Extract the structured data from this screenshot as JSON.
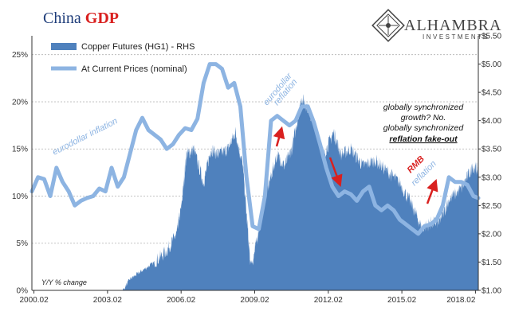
{
  "title": {
    "part1": "China",
    "part2": "GDP"
  },
  "logo": {
    "name": "ALHAMBRA",
    "sub": "INVESTMENTS"
  },
  "chart_data": {
    "type": "line",
    "x_tick_labels": [
      "2000.02",
      "2003.02",
      "2006.02",
      "2009.02",
      "2012.02",
      "2015.02",
      "2018.02"
    ],
    "y_left": {
      "range": [
        0,
        27
      ],
      "ticks": [
        "0%",
        "5%",
        "10%",
        "15%",
        "20%",
        "25%"
      ],
      "tick_values": [
        0,
        5,
        10,
        15,
        20,
        25
      ]
    },
    "y_right": {
      "range": [
        1.0,
        5.5
      ],
      "ticks": [
        "$1.00",
        "$1.50",
        "$2.00",
        "$2.50",
        "$3.00",
        "$3.50",
        "$4.00",
        "$4.50",
        "$5.00",
        "$5.50"
      ],
      "tick_values": [
        1.0,
        1.5,
        2.0,
        2.5,
        3.0,
        3.5,
        4.0,
        4.5,
        5.0,
        5.5
      ]
    },
    "grid": "horizontal dashed",
    "legend_placement": "top-left",
    "series": [
      {
        "name": "Copper Futures (HG1) - RHS",
        "type": "area",
        "axis": "right",
        "color": "#4f81bd",
        "x": [
          2000.0,
          2001.0,
          2002.0,
          2003.0,
          2003.5,
          2004.0,
          2004.5,
          2005.0,
          2005.5,
          2005.9,
          2006.1,
          2006.3,
          2006.6,
          2007.0,
          2007.3,
          2007.6,
          2008.0,
          2008.3,
          2008.6,
          2008.9,
          2009.0,
          2009.3,
          2009.6,
          2010.0,
          2010.3,
          2010.6,
          2011.0,
          2011.3,
          2011.6,
          2011.9,
          2012.3,
          2012.6,
          2013.0,
          2013.5,
          2014.0,
          2014.5,
          2015.0,
          2015.5,
          2015.9,
          2016.3,
          2016.6,
          2017.0,
          2017.5,
          2018.0,
          2018.2
        ],
        "values": [
          0.8,
          0.7,
          0.7,
          0.8,
          0.85,
          1.2,
          1.35,
          1.5,
          1.7,
          2.0,
          2.5,
          3.4,
          3.5,
          2.9,
          3.5,
          3.4,
          3.5,
          3.8,
          3.2,
          1.5,
          1.5,
          2.2,
          2.8,
          3.4,
          3.2,
          3.5,
          4.4,
          4.2,
          3.8,
          3.4,
          3.8,
          3.4,
          3.5,
          3.2,
          3.3,
          3.1,
          2.9,
          2.5,
          2.1,
          2.2,
          2.2,
          2.6,
          2.8,
          3.2,
          3.1
        ]
      },
      {
        "name": "At Current Prices (nominal)",
        "type": "line",
        "axis": "left",
        "color": "#8db4e2",
        "x": [
          2000.0,
          2000.25,
          2000.5,
          2000.75,
          2001.0,
          2001.25,
          2001.5,
          2001.75,
          2002.0,
          2002.25,
          2002.5,
          2002.75,
          2003.0,
          2003.25,
          2003.5,
          2003.75,
          2004.0,
          2004.25,
          2004.5,
          2004.75,
          2005.0,
          2005.25,
          2005.5,
          2005.75,
          2006.0,
          2006.25,
          2006.5,
          2006.75,
          2007.0,
          2007.25,
          2007.5,
          2007.75,
          2008.0,
          2008.25,
          2008.5,
          2008.75,
          2009.0,
          2009.25,
          2009.5,
          2009.75,
          2010.0,
          2010.25,
          2010.5,
          2010.75,
          2011.0,
          2011.25,
          2011.5,
          2011.75,
          2012.0,
          2012.25,
          2012.5,
          2012.75,
          2013.0,
          2013.25,
          2013.5,
          2013.75,
          2014.0,
          2014.25,
          2014.5,
          2014.75,
          2015.0,
          2015.25,
          2015.5,
          2015.75,
          2016.0,
          2016.25,
          2016.5,
          2016.75,
          2017.0,
          2017.25,
          2017.5,
          2017.75,
          2018.0,
          2018.2
        ],
        "values": [
          10.5,
          12.0,
          11.8,
          10.0,
          13.0,
          11.5,
          10.5,
          9.0,
          9.5,
          9.8,
          10.0,
          10.8,
          10.5,
          13.0,
          11.0,
          12.0,
          14.5,
          17.0,
          18.3,
          17.0,
          16.5,
          16.0,
          15.0,
          15.5,
          16.5,
          17.2,
          17.0,
          18.2,
          22.0,
          24.0,
          24.0,
          23.5,
          21.5,
          22.0,
          19.5,
          12.0,
          6.8,
          6.5,
          10.0,
          18.0,
          18.5,
          18.0,
          17.5,
          18.0,
          19.5,
          19.5,
          17.8,
          15.5,
          13.0,
          11.0,
          10.0,
          10.5,
          10.2,
          9.5,
          10.5,
          11.0,
          9.0,
          8.5,
          9.0,
          8.5,
          7.5,
          7.0,
          6.5,
          6.0,
          6.8,
          7.0,
          7.5,
          9.0,
          12.0,
          11.5,
          11.5,
          11.2,
          10.0,
          9.8
        ]
      }
    ],
    "annotations": {
      "eurodollar_inflation": "eurodollar inflation",
      "eurodollar_reflation_1": "eurodollar",
      "eurodollar_reflation_2": "reflation",
      "rmb_reflation_1": "RMB",
      "rmb_reflation_2": "reflation",
      "gs_line1": "globally synchronized",
      "gs_line2": "growth?  No.",
      "gs_line3": "globally synchronized",
      "gs_line4": "reflation fake-out",
      "yy_note": "Y/Y % change"
    }
  }
}
